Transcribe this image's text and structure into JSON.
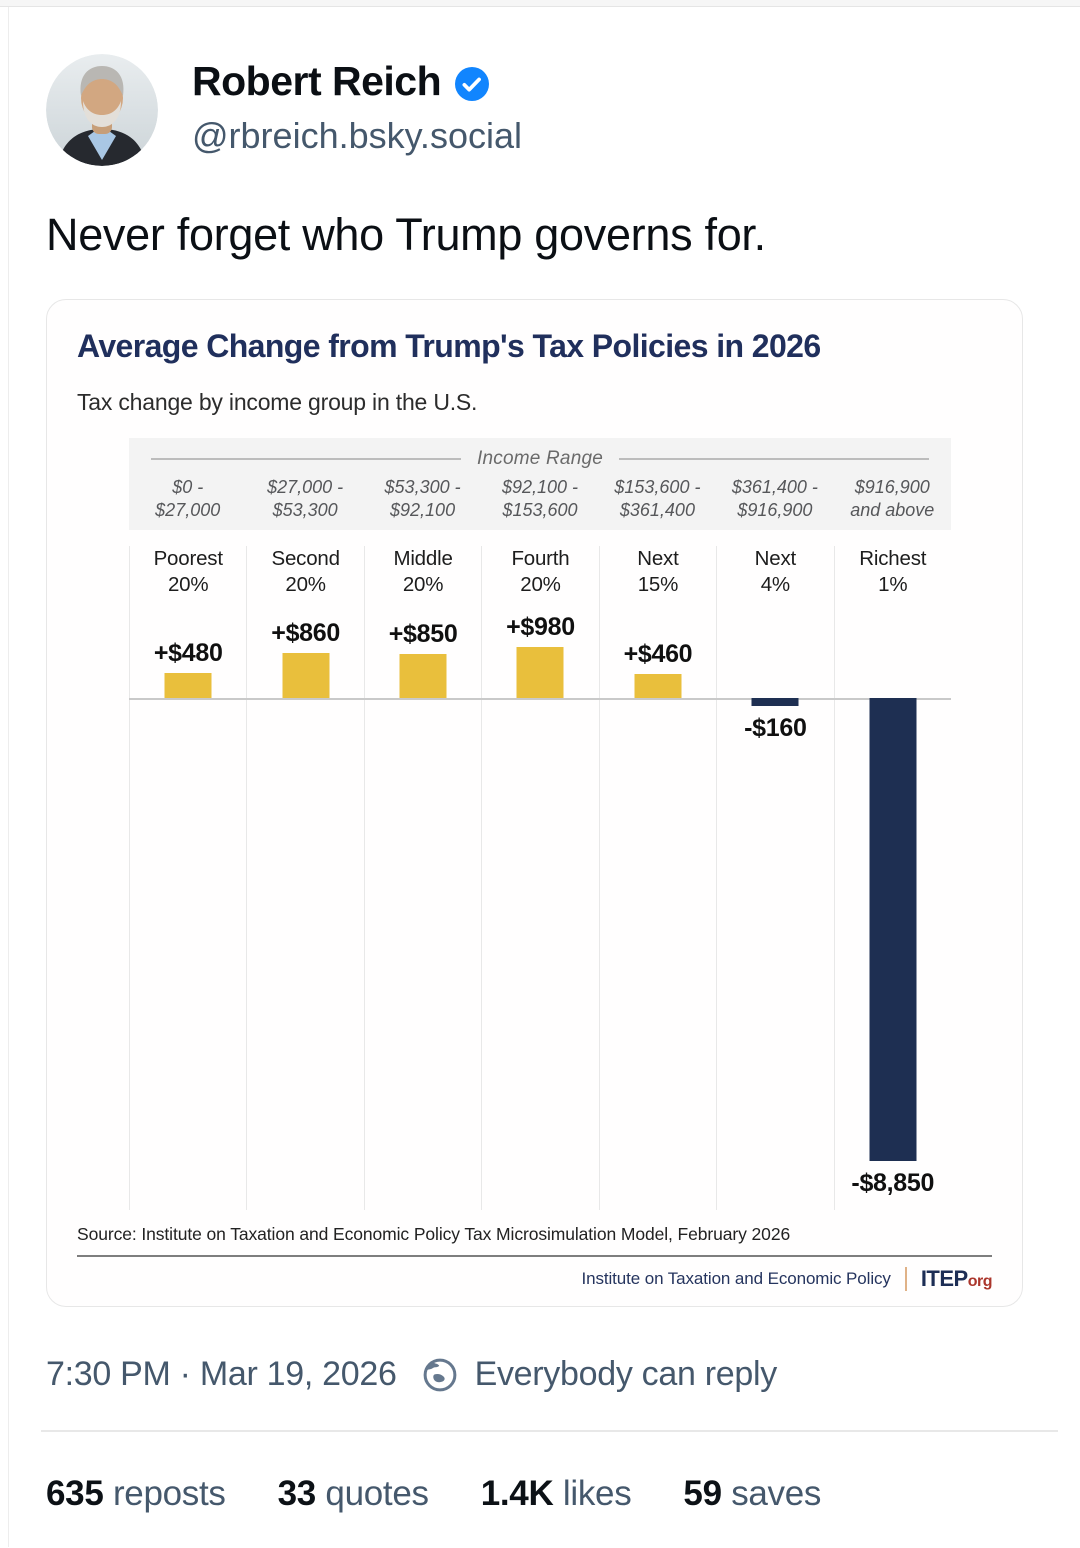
{
  "post": {
    "author": {
      "name": "Robert Reich",
      "handle": "@rbreich.bsky.social"
    },
    "text": "Never forget who Trump governs for.",
    "timestamp": "7:30 PM · Mar 19, 2026",
    "reply_permission": "Everybody can reply",
    "stats": [
      {
        "value": "635",
        "label": "reposts"
      },
      {
        "value": "33",
        "label": "quotes"
      },
      {
        "value": "1.4K",
        "label": "likes"
      },
      {
        "value": "59",
        "label": "saves"
      }
    ]
  },
  "chart_data": {
    "type": "bar",
    "title": "Average Change from Trump's Tax Policies in 2026",
    "subtitle": "Tax change by income group in the U.S.",
    "axis_group_header": "Income Range",
    "income_ranges": [
      [
        "$0 -",
        "$27,000"
      ],
      [
        "$27,000 -",
        "$53,300"
      ],
      [
        "$53,300 -",
        "$92,100"
      ],
      [
        "$92,100 -",
        "$153,600"
      ],
      [
        "$153,600 -",
        "$361,400"
      ],
      [
        "$361,400 -",
        "$916,900"
      ],
      [
        "$916,900",
        "and above"
      ]
    ],
    "categories": [
      [
        "Poorest",
        "20%"
      ],
      [
        "Second",
        "20%"
      ],
      [
        "Middle",
        "20%"
      ],
      [
        "Fourth",
        "20%"
      ],
      [
        "Next",
        "15%"
      ],
      [
        "Next",
        "4%"
      ],
      [
        "Richest",
        "1%"
      ]
    ],
    "values": [
      480,
      860,
      850,
      980,
      460,
      -160,
      -8850
    ],
    "value_labels": [
      "+$480",
      "+$860",
      "+$850",
      "+$980",
      "+$460",
      "-$160",
      "-$8,850"
    ],
    "ylim": [
      -8850,
      980
    ],
    "legend": "none",
    "grid": "vertical column dividers with zero baseline",
    "colors": {
      "positive_bar": "#e9bf3c",
      "negative_bar": "#1e2f52"
    },
    "source": "Source: Institute on Taxation and Economic Policy Tax Microsimulation Model, February 2026",
    "footer": {
      "org": "Institute on Taxation and Economic Policy",
      "logo_main": "ITEP",
      "logo_suffix": "org"
    }
  }
}
